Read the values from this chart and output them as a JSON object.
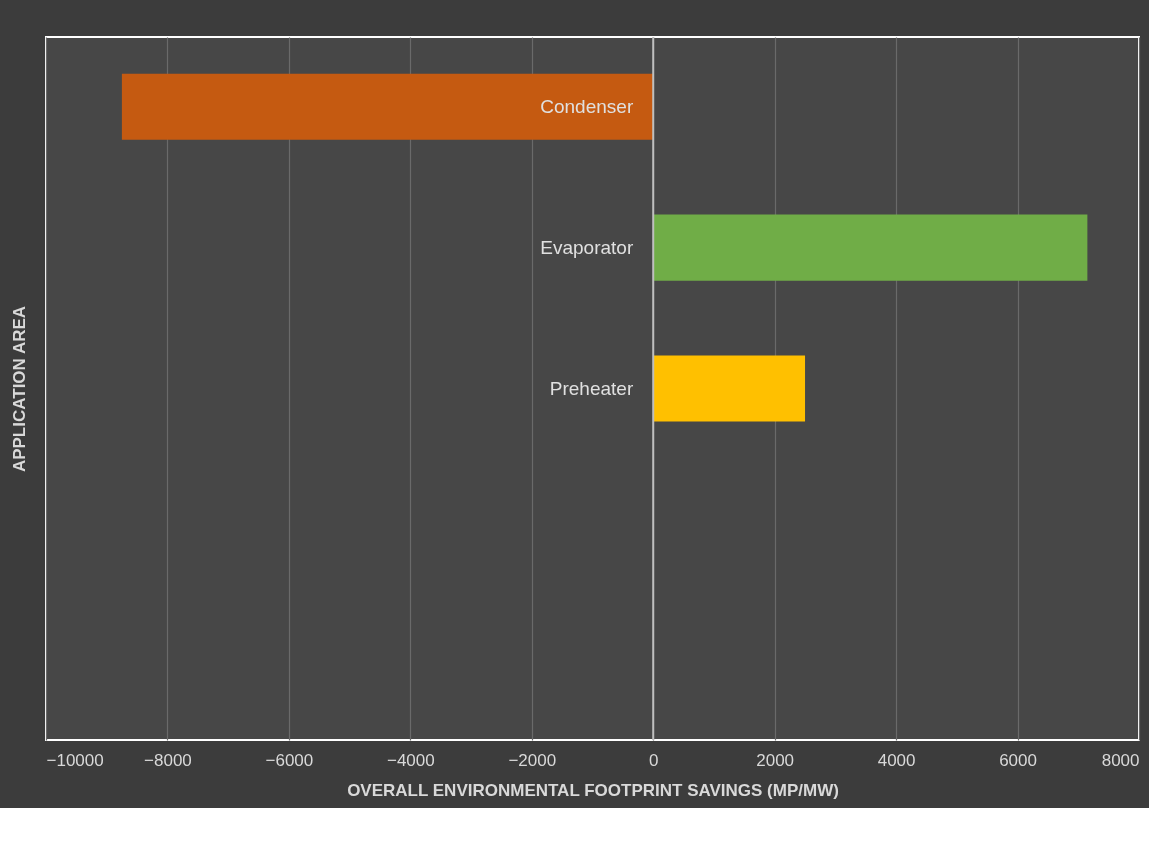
{
  "chart_data": {
    "type": "bar",
    "orientation": "horizontal",
    "xlabel": "OVERALL ENVIRONMENTAL  FOOTPRINT  SAVINGS (MP/MW)",
    "ylabel": "APPLICATION  AREA",
    "categories": [
      "Condenser",
      "Evaporator",
      "Preheater",
      null,
      null
    ],
    "values": [
      -8750,
      7150,
      2500,
      null,
      null
    ],
    "colors": [
      "#c55a11",
      "#70ad47",
      "#ffc000",
      "#ffc000",
      "#ffc000"
    ],
    "xlim": [
      -10000,
      8000
    ],
    "xticks": [
      -10000,
      -8000,
      -6000,
      -4000,
      -2000,
      0,
      2000,
      4000,
      6000,
      8000
    ],
    "grid": "x"
  }
}
